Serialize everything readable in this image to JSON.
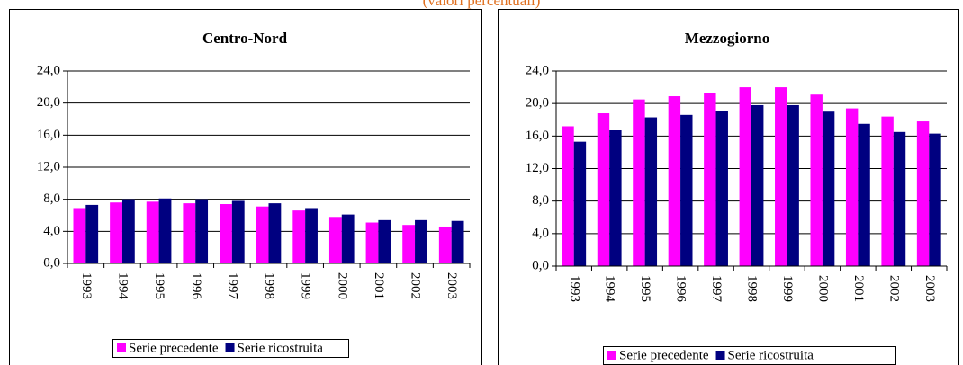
{
  "page_subtitle": "(valori percentuali)",
  "chart_data": [
    {
      "type": "bar",
      "title": "Centro-Nord",
      "categories": [
        "1993",
        "1994",
        "1995",
        "1996",
        "1997",
        "1998",
        "1999",
        "2000",
        "2001",
        "2002",
        "2003"
      ],
      "series": [
        {
          "name": "Serie precedente",
          "color": "#ff00ff",
          "values": [
            6.9,
            7.6,
            7.7,
            7.5,
            7.4,
            7.1,
            6.6,
            5.8,
            5.1,
            4.8,
            4.6
          ]
        },
        {
          "name": "Serie ricostruita",
          "color": "#000080",
          "values": [
            7.3,
            8.0,
            8.1,
            8.0,
            7.8,
            7.5,
            6.9,
            6.1,
            5.4,
            5.4,
            5.3
          ]
        }
      ],
      "ylim": [
        0,
        24
      ],
      "yticks": [
        {
          "value": 0,
          "label": "0,0"
        },
        {
          "value": 4,
          "label": "4,0"
        },
        {
          "value": 8,
          "label": "8,0"
        },
        {
          "value": 12,
          "label": "12,0"
        },
        {
          "value": 16,
          "label": "16,0"
        },
        {
          "value": 20,
          "label": "20,0"
        },
        {
          "value": 24,
          "label": "24,0"
        }
      ],
      "grid": true,
      "legend": "bottom"
    },
    {
      "type": "bar",
      "title": "Mezzogiorno",
      "categories": [
        "1993",
        "1994",
        "1995",
        "1996",
        "1997",
        "1998",
        "1999",
        "2000",
        "2001",
        "2002",
        "2003"
      ],
      "series": [
        {
          "name": "Serie precedente",
          "color": "#ff00ff",
          "values": [
            17.2,
            18.8,
            20.5,
            20.9,
            21.3,
            22.0,
            22.0,
            21.1,
            19.4,
            18.4,
            17.8
          ]
        },
        {
          "name": "Serie ricostruita",
          "color": "#000080",
          "values": [
            15.3,
            16.7,
            18.3,
            18.6,
            19.1,
            19.8,
            19.8,
            19.0,
            17.5,
            16.5,
            16.3
          ]
        }
      ],
      "ylim": [
        0,
        24
      ],
      "yticks": [
        {
          "value": 0,
          "label": "0,0"
        },
        {
          "value": 4,
          "label": "4,0"
        },
        {
          "value": 8,
          "label": "8,0"
        },
        {
          "value": 12,
          "label": "12,0"
        },
        {
          "value": 16,
          "label": "16,0"
        },
        {
          "value": 20,
          "label": "20,0"
        },
        {
          "value": 24,
          "label": "24,0"
        }
      ],
      "grid": true,
      "legend": "bottom"
    }
  ]
}
